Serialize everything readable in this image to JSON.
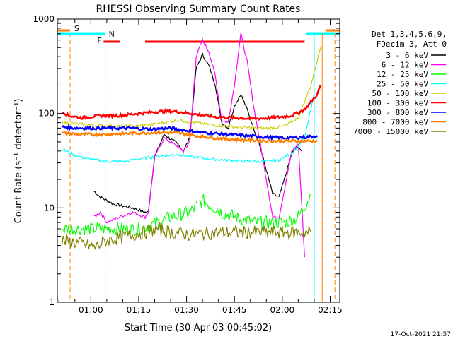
{
  "chart_data": {
    "type": "line",
    "title": "RHESSI Observing Summary Count Rates",
    "xlabel": "Start Time (30-Apr-03 00:45:02)",
    "ylabel": "Count Rate (s⁻¹ detector⁻¹)",
    "x_unit": "minutes after 00:45:02 (axis printed as clock time)",
    "xlim": [
      4.5,
      93
    ],
    "ylim": [
      1,
      1000
    ],
    "yscale": "log",
    "x_ticks": [
      "01:00",
      "01:15",
      "01:30",
      "01:45",
      "02:00",
      "02:15"
    ],
    "y_ticks": [
      "1",
      "10",
      "100",
      "1000"
    ],
    "timestamp": "17-Oct-2021 21:57",
    "legend": {
      "placement": "right",
      "header": [
        "Det 1,3,4,5,6,9,",
        "FDecim 3, Att 0"
      ]
    },
    "series": [
      {
        "name": "3 - 6 keV",
        "color": "#000000",
        "x": [
          16,
          18,
          22,
          28,
          32,
          33,
          35,
          38,
          42,
          44,
          46,
          48,
          50,
          52,
          54,
          56,
          58,
          60,
          62,
          64,
          66,
          68,
          70,
          72,
          74,
          76,
          78,
          80,
          81
        ],
        "y": [
          15,
          13,
          11,
          10,
          9,
          9,
          35,
          60,
          48,
          40,
          55,
          300,
          420,
          320,
          200,
          80,
          70,
          120,
          160,
          110,
          70,
          45,
          25,
          14,
          13,
          22,
          38,
          45,
          40
        ]
      },
      {
        "name": "6 - 12 keV",
        "color": "#ff00ff",
        "x": [
          16,
          18,
          20,
          24,
          28,
          32,
          33,
          35,
          38,
          42,
          44,
          46,
          48,
          50,
          52,
          54,
          56,
          58,
          60,
          62,
          64,
          66,
          68,
          70,
          72,
          74,
          76,
          78,
          80,
          82
        ],
        "y": [
          8,
          9,
          7,
          8,
          9,
          8,
          9,
          35,
          55,
          45,
          40,
          50,
          400,
          600,
          450,
          250,
          85,
          80,
          200,
          700,
          350,
          120,
          50,
          20,
          8,
          8,
          18,
          40,
          48,
          3
        ]
      },
      {
        "name": "12 - 25 keV",
        "color": "#00ff00",
        "x": [
          6,
          10,
          20,
          30,
          36,
          40,
          46,
          50,
          56,
          60,
          66,
          70,
          76,
          80,
          84
        ],
        "y": [
          6,
          6,
          6,
          6,
          7,
          8,
          9,
          12,
          9,
          8,
          7,
          7,
          7,
          8,
          14
        ]
      },
      {
        "name": "25 - 50 keV",
        "color": "#00ffff",
        "x": [
          6,
          10,
          14,
          20,
          26,
          30,
          36,
          42,
          46,
          52,
          58,
          64,
          70,
          74,
          78,
          82,
          85
        ],
        "y": [
          42,
          36,
          33,
          31,
          31,
          33,
          35,
          37,
          35,
          33,
          32,
          31,
          31,
          32,
          38,
          55,
          160
        ]
      },
      {
        "name": "50 - 100 keV",
        "color": "#cccc00",
        "x": [
          6,
          10,
          16,
          24,
          30,
          36,
          42,
          48,
          54,
          60,
          66,
          72,
          76,
          80,
          84,
          87
        ],
        "y": [
          80,
          78,
          75,
          73,
          74,
          78,
          85,
          80,
          75,
          72,
          70,
          70,
          74,
          90,
          200,
          500
        ]
      },
      {
        "name": "100 - 300 keV",
        "color": "#ff0000",
        "x": [
          6,
          8,
          12,
          18,
          24,
          30,
          36,
          42,
          48,
          54,
          60,
          66,
          72,
          78,
          82,
          86,
          87
        ],
        "y": [
          105,
          95,
          90,
          95,
          95,
          100,
          105,
          105,
          98,
          92,
          90,
          88,
          90,
          95,
          110,
          160,
          200
        ]
      },
      {
        "name": "300 - 800 keV",
        "color": "#0000ff",
        "x": [
          6,
          10,
          16,
          22,
          28,
          34,
          40,
          46,
          52,
          58,
          64,
          70,
          76,
          82,
          86
        ],
        "y": [
          72,
          70,
          70,
          70,
          70,
          68,
          70,
          65,
          62,
          60,
          58,
          56,
          55,
          56,
          58
        ]
      },
      {
        "name": "800 - 7000 keV",
        "color": "#ff8000",
        "x": [
          6,
          12,
          18,
          24,
          30,
          36,
          42,
          48,
          54,
          60,
          66,
          72,
          78,
          84,
          86
        ],
        "y": [
          62,
          60,
          60,
          61,
          62,
          63,
          62,
          58,
          55,
          53,
          52,
          51,
          51,
          51,
          51
        ]
      },
      {
        "name": "7000 - 15000 keV",
        "color": "#808000",
        "x": [
          6,
          12,
          16,
          20,
          26,
          32,
          36,
          40,
          46,
          52,
          58,
          64,
          70,
          76,
          80,
          84
        ],
        "y": [
          4.5,
          4.2,
          3.8,
          4.5,
          5.0,
          5.5,
          6.0,
          5.5,
          5.2,
          5.4,
          5.5,
          5.5,
          5.5,
          5.5,
          5.5,
          5.5
        ]
      }
    ],
    "flags": [
      {
        "label": "S",
        "color": "#ff8000",
        "segments": [
          [
            4.5,
            8.5
          ],
          [
            88.5,
            93
          ]
        ],
        "marker_x": 8.5
      },
      {
        "label": "N",
        "color": "#00ffff",
        "segments": [
          [
            4.5,
            19.5
          ],
          [
            82.5,
            93
          ]
        ],
        "marker_x": 19.5
      },
      {
        "label": "F",
        "color": "#ff0000",
        "segments": [
          [
            19,
            24
          ],
          [
            32,
            82
          ]
        ]
      }
    ]
  }
}
